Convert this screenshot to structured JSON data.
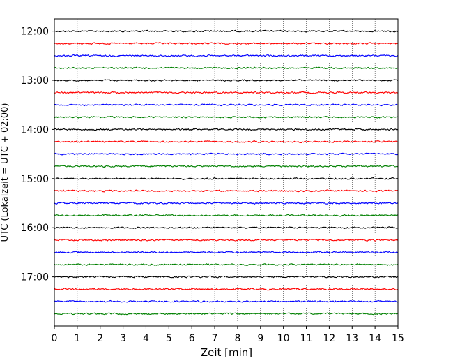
{
  "chart_data": {
    "type": "line",
    "title": "",
    "xlabel": "Zeit  [min]",
    "ylabel": "UTC (Lokalzeit = UTC + 02:00)",
    "xlim": [
      0,
      15
    ],
    "x_ticks": [
      0,
      1,
      2,
      3,
      4,
      5,
      6,
      7,
      8,
      9,
      10,
      11,
      12,
      13,
      14,
      15
    ],
    "y_ticks": [
      "12:00",
      "13:00",
      "14:00",
      "15:00",
      "16:00",
      "17:00"
    ],
    "ylim": [
      "11:45",
      "18:00"
    ],
    "grid": "vertical dotted",
    "trace_interval_min": 15,
    "trace_start": "12:00",
    "trace_end": "17:45",
    "trace_color_cycle": [
      "#000000",
      "#ff0000",
      "#0000ff",
      "#008000"
    ],
    "series": [
      {
        "label": "12:00",
        "color": "#000000",
        "offset": 0,
        "amplitude": 0
      },
      {
        "label": "12:15",
        "color": "#ff0000",
        "offset": 0,
        "amplitude": 0
      },
      {
        "label": "12:30",
        "color": "#0000ff",
        "offset": 0,
        "amplitude": 0
      },
      {
        "label": "12:45",
        "color": "#008000",
        "offset": 0,
        "amplitude": 0
      },
      {
        "label": "13:00",
        "color": "#000000",
        "offset": 0,
        "amplitude": 0
      },
      {
        "label": "13:15",
        "color": "#ff0000",
        "offset": 0,
        "amplitude": 0
      },
      {
        "label": "13:30",
        "color": "#0000ff",
        "offset": 0,
        "amplitude": 0
      },
      {
        "label": "13:45",
        "color": "#008000",
        "offset": 0,
        "amplitude": 0
      },
      {
        "label": "14:00",
        "color": "#000000",
        "offset": 0,
        "amplitude": 0
      },
      {
        "label": "14:15",
        "color": "#ff0000",
        "offset": 0,
        "amplitude": 0
      },
      {
        "label": "14:30",
        "color": "#0000ff",
        "offset": 0,
        "amplitude": 0
      },
      {
        "label": "14:45",
        "color": "#008000",
        "offset": 0,
        "amplitude": 0
      },
      {
        "label": "15:00",
        "color": "#000000",
        "offset": 0,
        "amplitude": 0
      },
      {
        "label": "15:15",
        "color": "#ff0000",
        "offset": 0,
        "amplitude": 0
      },
      {
        "label": "15:30",
        "color": "#0000ff",
        "offset": 0,
        "amplitude": 0
      },
      {
        "label": "15:45",
        "color": "#008000",
        "offset": 0,
        "amplitude": 0
      },
      {
        "label": "16:00",
        "color": "#000000",
        "offset": 0,
        "amplitude": 0
      },
      {
        "label": "16:15",
        "color": "#ff0000",
        "offset": 0,
        "amplitude": 0
      },
      {
        "label": "16:30",
        "color": "#0000ff",
        "offset": 0,
        "amplitude": 0
      },
      {
        "label": "16:45",
        "color": "#008000",
        "offset": 0,
        "amplitude": 0
      },
      {
        "label": "17:00",
        "color": "#000000",
        "offset": 0,
        "amplitude": 0
      },
      {
        "label": "17:15",
        "color": "#ff0000",
        "offset": 0,
        "amplitude": 0
      },
      {
        "label": "17:30",
        "color": "#0000ff",
        "offset": 0,
        "amplitude": 0
      },
      {
        "label": "17:45",
        "color": "#008000",
        "offset": 0,
        "amplitude": 0
      }
    ]
  }
}
